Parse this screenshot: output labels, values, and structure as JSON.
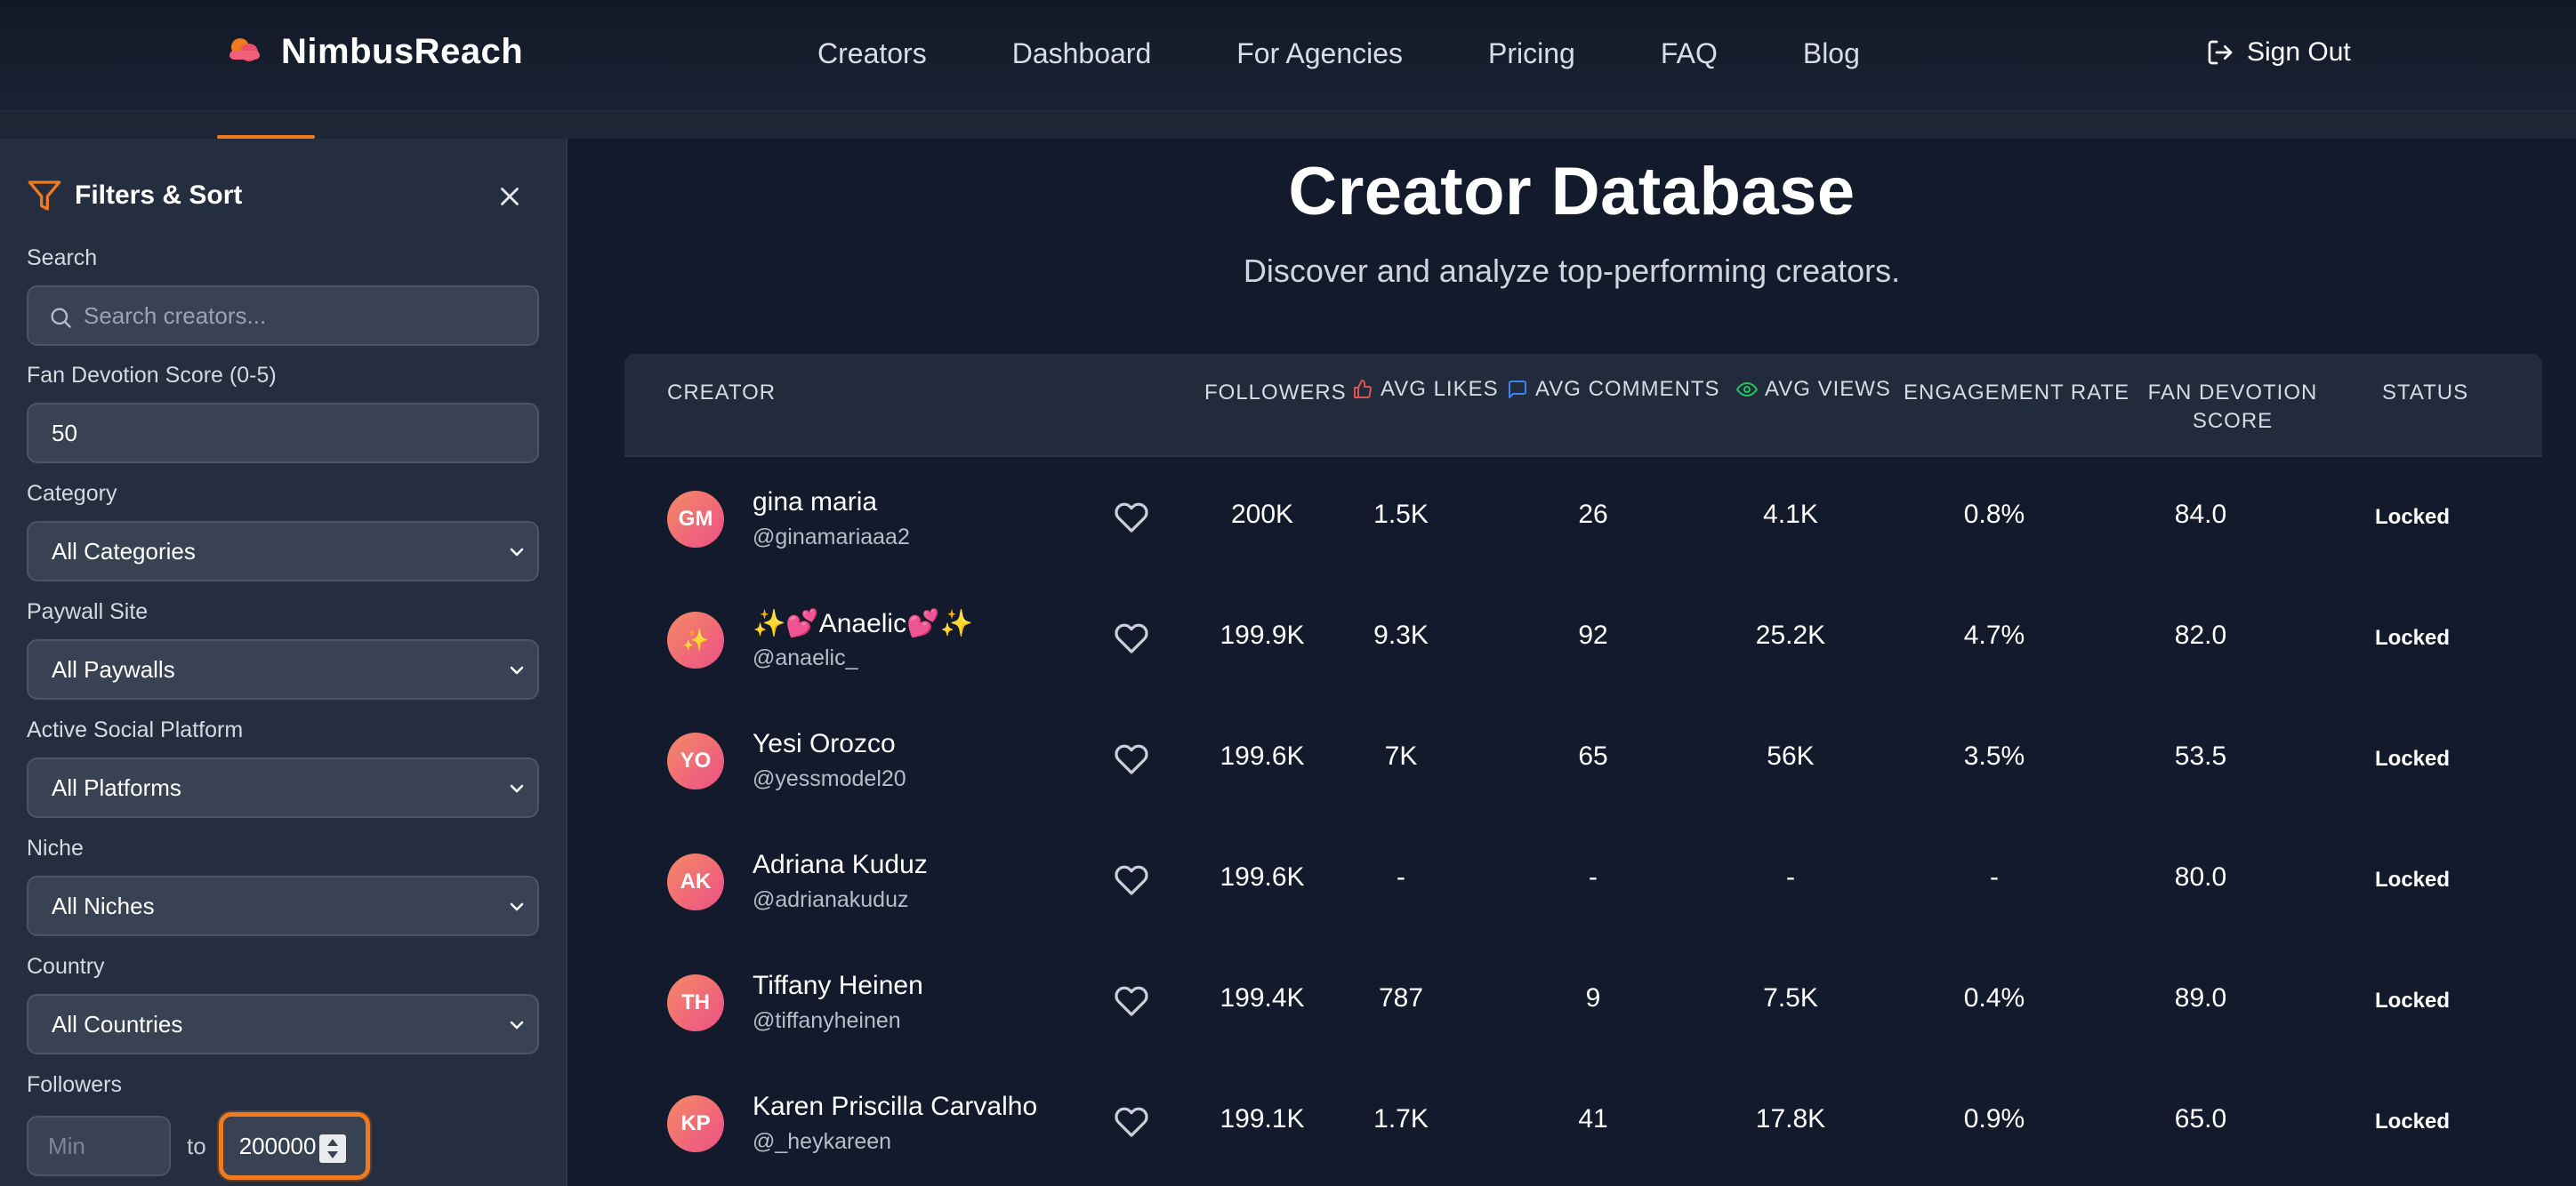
{
  "nav": {
    "brand": "NimbusReach",
    "links": [
      "Creators",
      "Dashboard",
      "For Agencies",
      "Pricing",
      "FAQ",
      "Blog"
    ],
    "sign_out": "Sign Out"
  },
  "sidebar": {
    "title": "Filters & Sort",
    "search_label": "Search",
    "search_placeholder": "Search creators...",
    "fan_devotion_label": "Fan Devotion Score (0-5)",
    "fan_devotion_value": "50",
    "category_label": "Category",
    "category_value": "All Categories",
    "paywall_label": "Paywall Site",
    "paywall_value": "All Paywalls",
    "platform_label": "Active Social Platform",
    "platform_value": "All Platforms",
    "niche_label": "Niche",
    "niche_value": "All Niches",
    "country_label": "Country",
    "country_value": "All Countries",
    "followers_label": "Followers",
    "followers_min_placeholder": "Min",
    "followers_to": "to",
    "followers_max_value": "200000"
  },
  "main": {
    "title": "Creator Database",
    "subtitle": "Discover and analyze top-performing creators."
  },
  "table": {
    "headers": {
      "creator": "CREATOR",
      "followers": "FOLLOWERS",
      "avg_likes": "AVG LIKES",
      "avg_comments": "AVG COMMENTS",
      "avg_views": "AVG VIEWS",
      "engagement": "ENGAGEMENT RATE",
      "fan_devotion_1": "FAN DEVOTION",
      "fan_devotion_2": "SCORE",
      "status": "STATUS"
    },
    "rows": [
      {
        "initials": "GM",
        "name": "gina maria",
        "handle": "@ginamariaaa2",
        "followers": "200K",
        "likes": "1.5K",
        "comments": "26",
        "views": "4.1K",
        "engagement": "0.8%",
        "score": "84.0",
        "status": "Locked"
      },
      {
        "initials": "✨",
        "name": "✨💕Anaelic💕✨",
        "handle": "@anaelic_",
        "followers": "199.9K",
        "likes": "9.3K",
        "comments": "92",
        "views": "25.2K",
        "engagement": "4.7%",
        "score": "82.0",
        "status": "Locked"
      },
      {
        "initials": "YO",
        "name": "Yesi Orozco",
        "handle": "@yessmodel20",
        "followers": "199.6K",
        "likes": "7K",
        "comments": "65",
        "views": "56K",
        "engagement": "3.5%",
        "score": "53.5",
        "status": "Locked"
      },
      {
        "initials": "AK",
        "name": "Adriana Kuduz",
        "handle": "@adrianakuduz",
        "followers": "199.6K",
        "likes": "-",
        "comments": "-",
        "views": "-",
        "engagement": "-",
        "score": "80.0",
        "status": "Locked"
      },
      {
        "initials": "TH",
        "name": "Tiffany Heinen",
        "handle": "@tiffanyheinen",
        "followers": "199.4K",
        "likes": "787",
        "comments": "9",
        "views": "7.5K",
        "engagement": "0.4%",
        "score": "89.0",
        "status": "Locked"
      },
      {
        "initials": "KP",
        "name": "Karen Priscilla Carvalho",
        "handle": "@_heykareen",
        "followers": "199.1K",
        "likes": "1.7K",
        "comments": "41",
        "views": "17.8K",
        "engagement": "0.9%",
        "score": "65.0",
        "status": "Locked"
      }
    ]
  },
  "colors": {
    "accent": "#f07a1d",
    "likes_icon": "#e0524f",
    "comments_icon": "#3b82f6",
    "views_icon": "#22c55e"
  }
}
